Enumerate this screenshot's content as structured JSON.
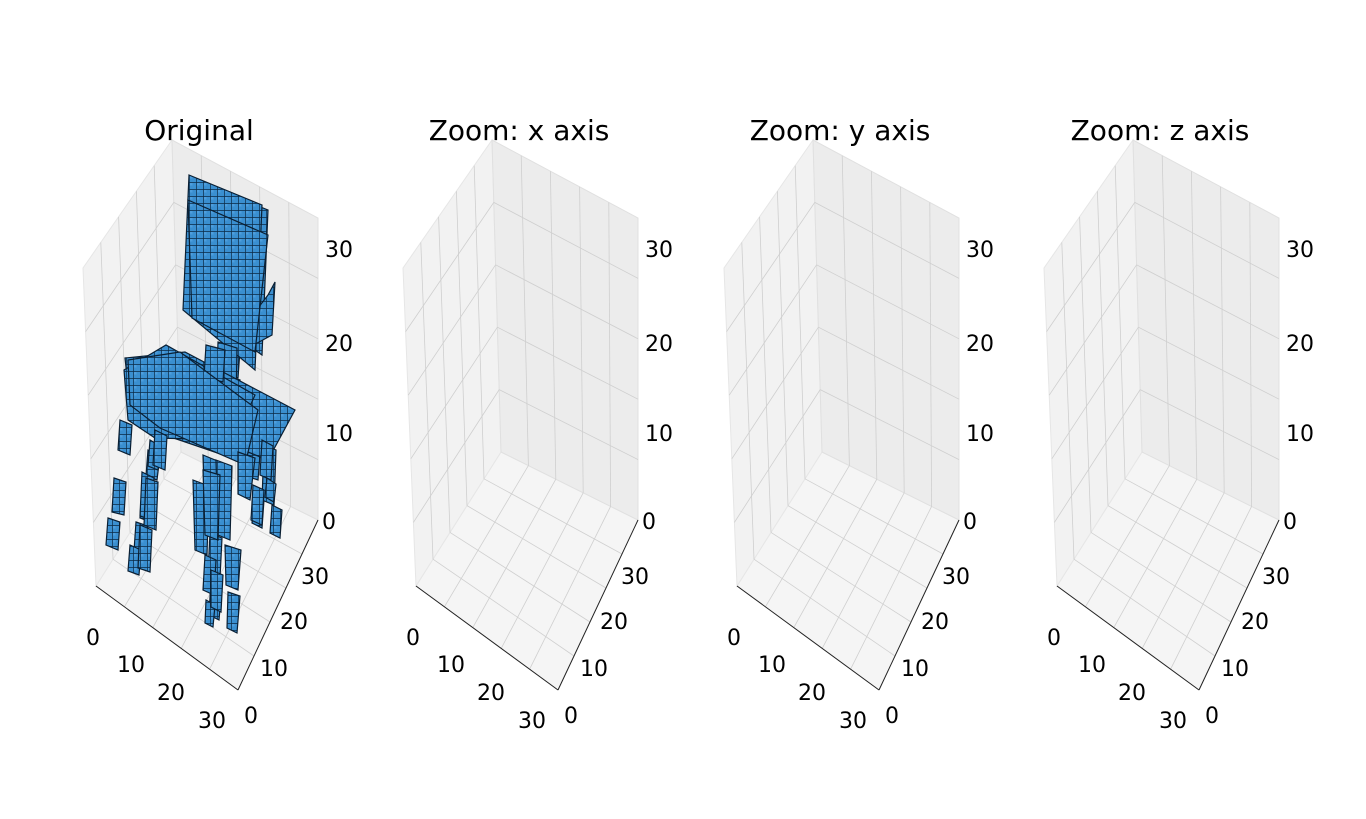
{
  "chart_data": [
    {
      "type": "voxel3d",
      "title": "Original",
      "color": "#1f77b4",
      "edge_color": "#000000",
      "axes": {
        "x": {
          "ticks": [
            "0",
            "10",
            "20",
            "30"
          ],
          "range": [
            0,
            32
          ]
        },
        "y": {
          "ticks": [
            "0",
            "10",
            "20",
            "30"
          ],
          "range": [
            0,
            32
          ]
        },
        "z": {
          "ticks": [
            "0",
            "10",
            "20",
            "30"
          ],
          "range": [
            0,
            32
          ]
        }
      },
      "grid": true
    },
    {
      "type": "voxel3d",
      "title": "Zoom: x axis",
      "color": "#1f77b4",
      "edge_color": "#000000",
      "axes": {
        "x": {
          "ticks": [
            "0",
            "10",
            "20",
            "30"
          ],
          "range": [
            0,
            32
          ]
        },
        "y": {
          "ticks": [
            "0",
            "10",
            "20",
            "30"
          ],
          "range": [
            0,
            32
          ]
        },
        "z": {
          "ticks": [
            "0",
            "10",
            "20",
            "30"
          ],
          "range": [
            0,
            32
          ]
        }
      },
      "grid": true
    },
    {
      "type": "voxel3d",
      "title": "Zoom: y axis",
      "color": "#1f77b4",
      "edge_color": "#000000",
      "axes": {
        "x": {
          "ticks": [
            "0",
            "10",
            "20",
            "30"
          ],
          "range": [
            0,
            32
          ]
        },
        "y": {
          "ticks": [
            "0",
            "10",
            "20",
            "30"
          ],
          "range": [
            0,
            32
          ]
        },
        "z": {
          "ticks": [
            "0",
            "10",
            "20",
            "30"
          ],
          "range": [
            0,
            32
          ]
        }
      },
      "grid": true
    },
    {
      "type": "voxel3d",
      "title": "Zoom: z axis",
      "color": "#1f77b4",
      "edge_color": "#000000",
      "axes": {
        "x": {
          "ticks": [
            "0",
            "10",
            "20",
            "30"
          ],
          "range": [
            0,
            32
          ]
        },
        "y": {
          "ticks": [
            "0",
            "10",
            "20",
            "30"
          ],
          "range": [
            0,
            32
          ]
        },
        "z": {
          "ticks": [
            "0",
            "10",
            "20",
            "30"
          ],
          "range": [
            0,
            32
          ]
        }
      },
      "grid": true
    }
  ]
}
